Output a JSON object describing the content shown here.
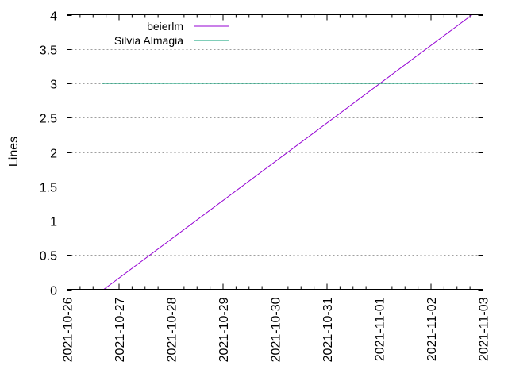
{
  "chart_data": {
    "type": "line",
    "title": "",
    "xlabel": "",
    "ylabel": "Lines",
    "ylim": [
      0,
      4
    ],
    "yticks": [
      "0",
      "0.5",
      "1",
      "1.5",
      "2",
      "2.5",
      "3",
      "3.5",
      "4"
    ],
    "xlim": [
      "2021-10-26",
      "2021-11-03"
    ],
    "xticks": [
      "2021-10-26",
      "2021-10-27",
      "2021-10-28",
      "2021-10-29",
      "2021-10-30",
      "2021-10-31",
      "2021-11-01",
      "2021-11-02",
      "2021-11-03"
    ],
    "grid": {
      "y": true,
      "x": false,
      "style": "dotted"
    },
    "legend": {
      "position": "top-left-inside",
      "entries": [
        "beierlm",
        "Silvia Almagia"
      ]
    },
    "series": [
      {
        "name": "beierlm",
        "color": "#9400d3",
        "x": [
          "2021-10-26 17:00",
          "2021-11-02 19:00"
        ],
        "values": [
          0,
          4
        ]
      },
      {
        "name": "Silvia Almagia",
        "color": "#009e73",
        "x": [
          "2021-10-26 16:00",
          "2021-11-02 19:00"
        ],
        "values": [
          3,
          3
        ]
      }
    ]
  }
}
